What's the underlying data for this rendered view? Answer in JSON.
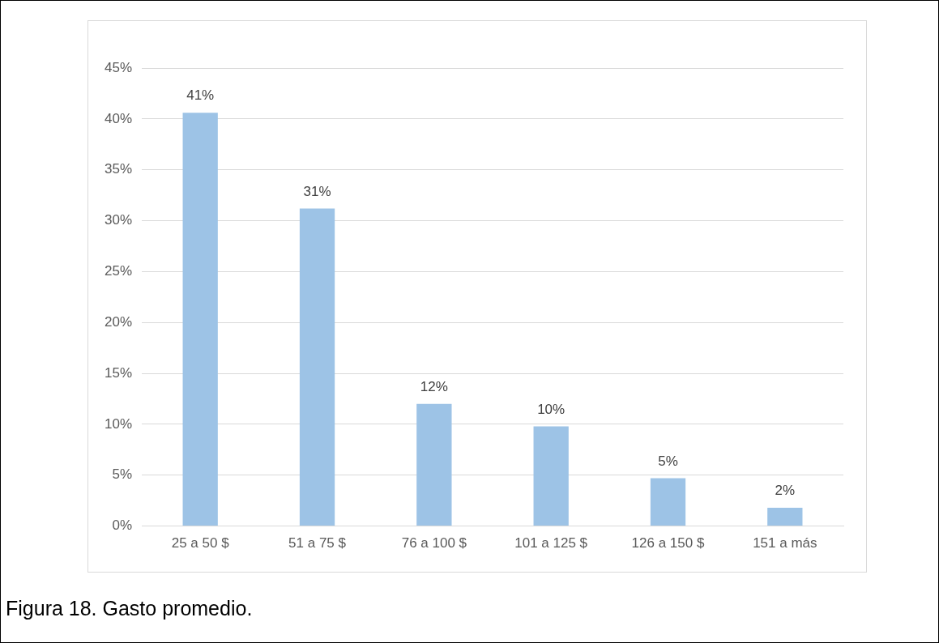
{
  "chart_data": {
    "type": "bar",
    "categories": [
      "25 a 50 $",
      "51 a 75 $",
      "76 a 100 $",
      "101 a 125 $",
      "126 a 150 $",
      "151 a más"
    ],
    "values": [
      40.6,
      31.2,
      12,
      9.8,
      4.7,
      1.8
    ],
    "value_labels": [
      "41%",
      "31%",
      "12%",
      "10%",
      "5%",
      "2%"
    ],
    "color": "#9dc3e6",
    "ylim": [
      0,
      45
    ],
    "yticks": [
      {
        "value": 0,
        "label": "0%"
      },
      {
        "value": 5,
        "label": "5%"
      },
      {
        "value": 10,
        "label": "10%"
      },
      {
        "value": 15,
        "label": "15%"
      },
      {
        "value": 20,
        "label": "20%"
      },
      {
        "value": 25,
        "label": "25%"
      },
      {
        "value": 30,
        "label": "30%"
      },
      {
        "value": 35,
        "label": "35%"
      },
      {
        "value": 40,
        "label": "40%"
      },
      {
        "value": 45,
        "label": "45%"
      }
    ],
    "grid": "y",
    "legend": false,
    "annotations": [
      "Figura 18. Gasto promedio."
    ]
  }
}
